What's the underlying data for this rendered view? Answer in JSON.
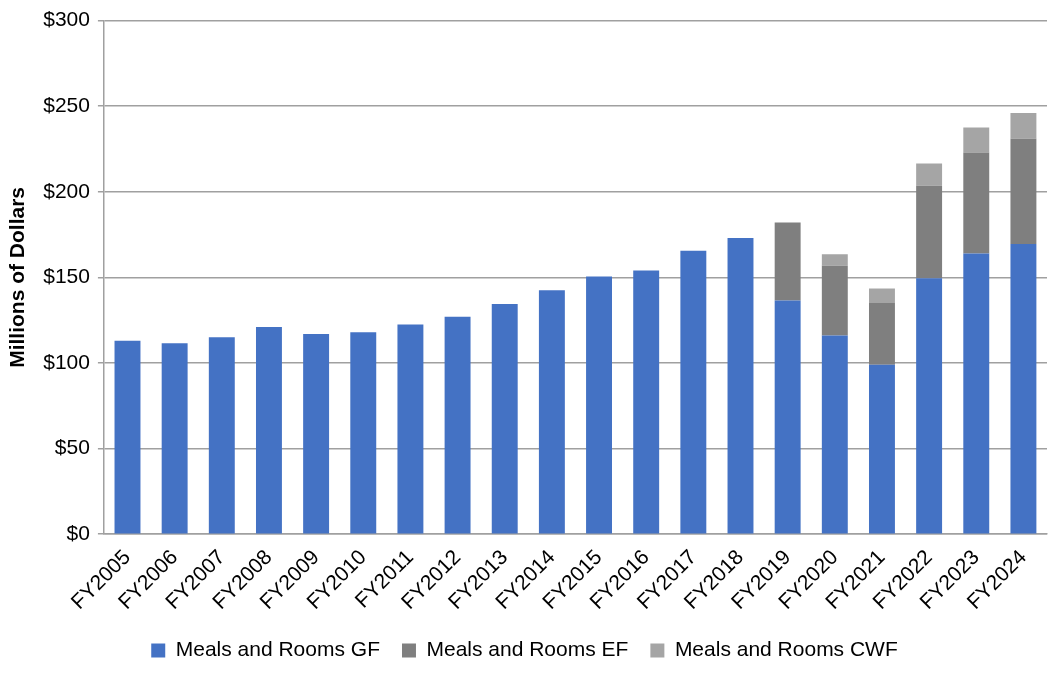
{
  "chart_data": {
    "type": "bar",
    "ylabel": "Millions of Dollars",
    "stacked": true,
    "grid": "y",
    "legend": "bottom",
    "categories": [
      "FY2005",
      "FY2006",
      "FY2007",
      "FY2008",
      "FY2009",
      "FY2010",
      "FY2011",
      "FY2012",
      "FY2013",
      "FY2014",
      "FY2015",
      "FY2016",
      "FY2017",
      "FY2018",
      "FY2019",
      "FY2020",
      "FY2021",
      "FY2022",
      "FY2023",
      "FY2024"
    ],
    "ylim": [
      0,
      300
    ],
    "yticks": [
      {
        "value": 0,
        "label": "$0"
      },
      {
        "value": 50,
        "label": "$50"
      },
      {
        "value": 100,
        "label": "$100"
      },
      {
        "value": 150,
        "label": "$150"
      },
      {
        "value": 200,
        "label": "$200"
      },
      {
        "value": 250,
        "label": "$250"
      },
      {
        "value": 300,
        "label": "$300"
      }
    ],
    "series": [
      {
        "name": "Meals and Rooms GF",
        "color": "#4472c4",
        "values": [
          113,
          111.5,
          115,
          121,
          117,
          118,
          122.5,
          127,
          134.5,
          142.5,
          150.5,
          154,
          165.5,
          173,
          136.5,
          116,
          99,
          149.5,
          164,
          169.5
        ]
      },
      {
        "name": "Meals and Rooms EF",
        "color": "#7f7f7f",
        "values": [
          null,
          null,
          null,
          null,
          null,
          null,
          null,
          null,
          null,
          null,
          null,
          null,
          null,
          null,
          45.5,
          41,
          36,
          54,
          59,
          61.5
        ]
      },
      {
        "name": "Meals and Rooms CWF",
        "color": "#a5a5a5",
        "values": [
          null,
          null,
          null,
          null,
          null,
          null,
          null,
          null,
          null,
          null,
          null,
          null,
          null,
          null,
          null,
          6.5,
          8.5,
          13,
          14.5,
          15
        ]
      }
    ]
  }
}
